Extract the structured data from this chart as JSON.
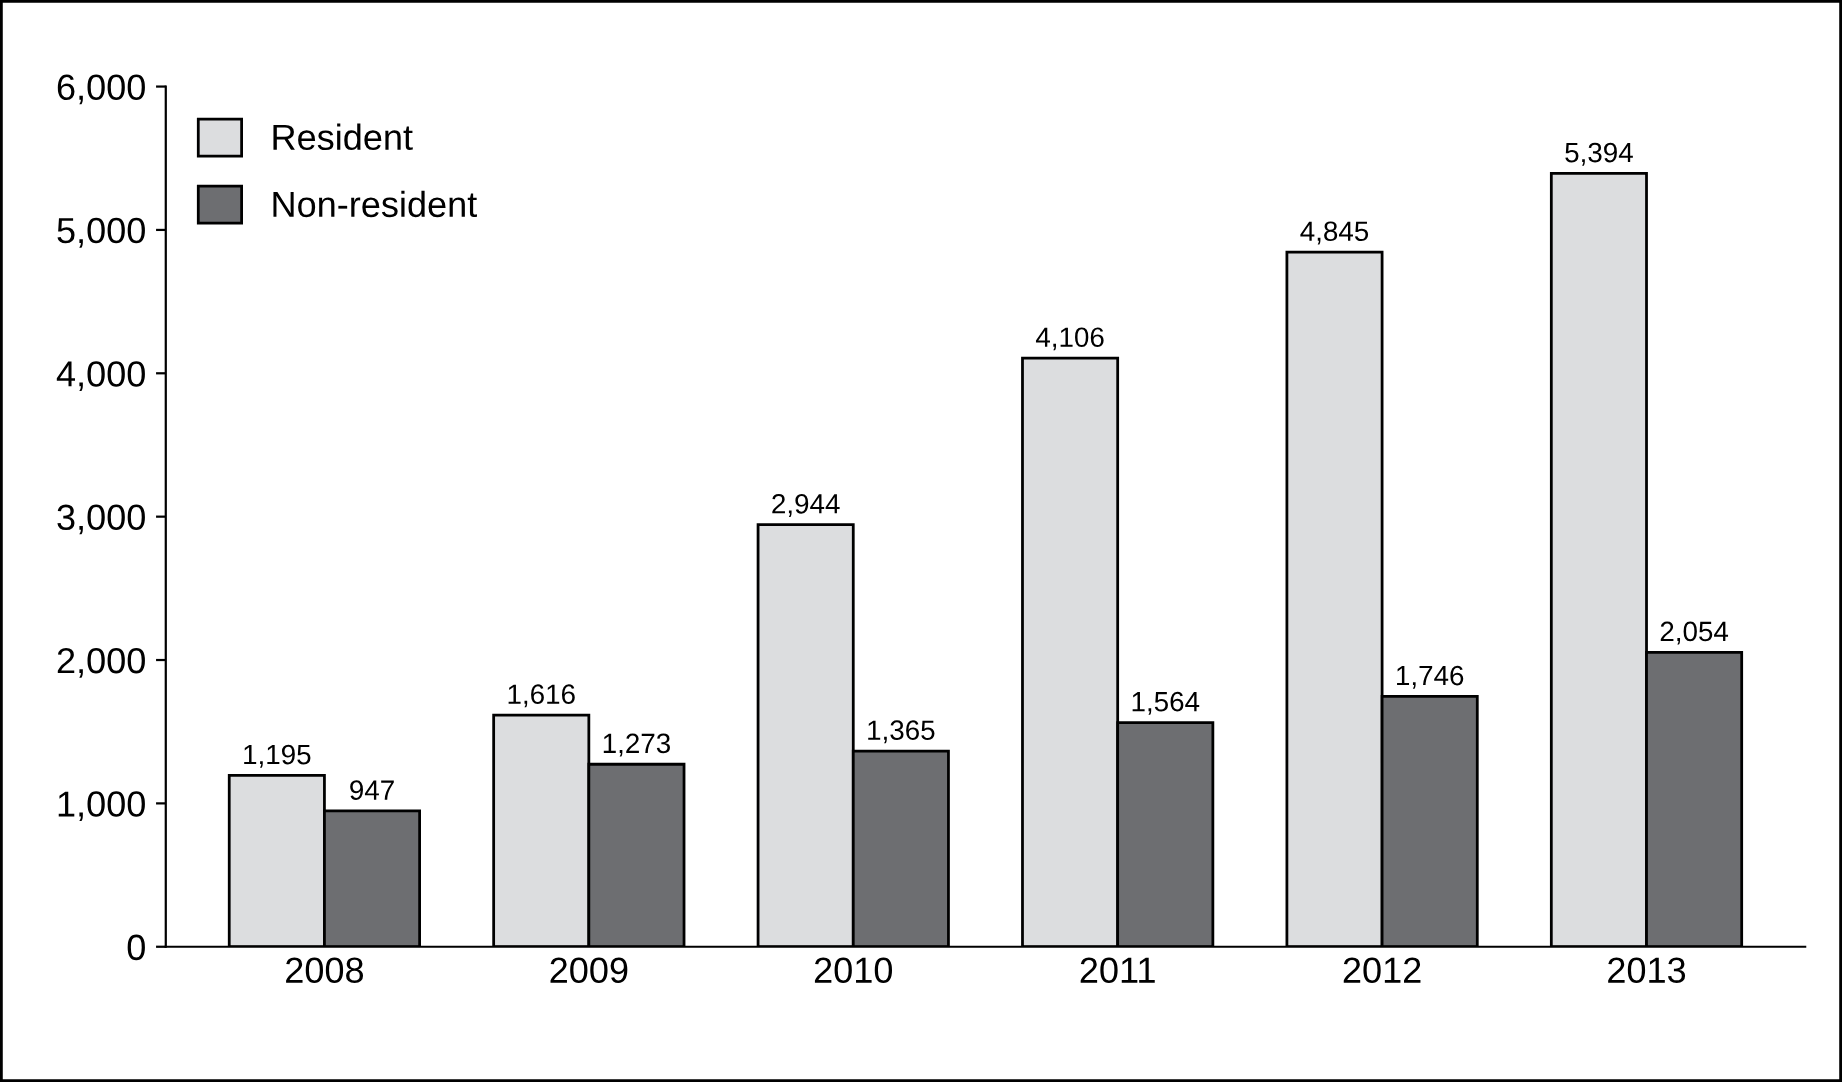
{
  "chart_data": {
    "type": "bar",
    "categories": [
      "2008",
      "2009",
      "2010",
      "2011",
      "2012",
      "2013"
    ],
    "series": [
      {
        "name": "Resident",
        "color": "#dcdddf",
        "values": [
          1195,
          1616,
          2944,
          4106,
          4845,
          5394
        ],
        "value_labels": [
          "1,195",
          "1,616",
          "2,944",
          "4,106",
          "4,845",
          "5,394"
        ]
      },
      {
        "name": "Non-resident",
        "color": "#6d6e71",
        "values": [
          947,
          1273,
          1365,
          1564,
          1746,
          2054
        ],
        "value_labels": [
          "947",
          "1,273",
          "1,365",
          "1,564",
          "1,746",
          "2,054"
        ]
      }
    ],
    "ylim": [
      0,
      6000
    ],
    "yticks": [
      0,
      {
        "value": 1000,
        "label": "1,000"
      },
      {
        "value": 2000,
        "label": "2,000"
      },
      {
        "value": 3000,
        "label": "3,000"
      },
      {
        "value": 4000,
        "label": "4,000"
      },
      {
        "value": 5000,
        "label": "5,000"
      },
      {
        "value": 6000,
        "label": "6,000"
      }
    ],
    "grid": false,
    "legend": "top left"
  }
}
